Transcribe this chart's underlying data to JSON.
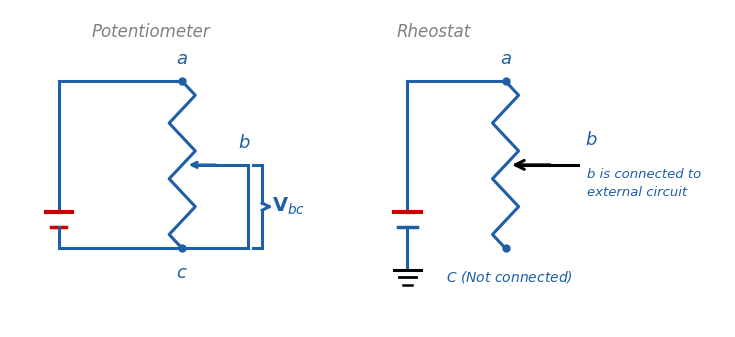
{
  "bg_color": "#ffffff",
  "blue": "#1f5fa6",
  "red": "#cc0000",
  "black": "#000000",
  "gray": "#808080",
  "title_left": "Potentiometer",
  "title_right": "Rheostat",
  "figsize": [
    7.35,
    3.37
  ],
  "dpi": 100
}
